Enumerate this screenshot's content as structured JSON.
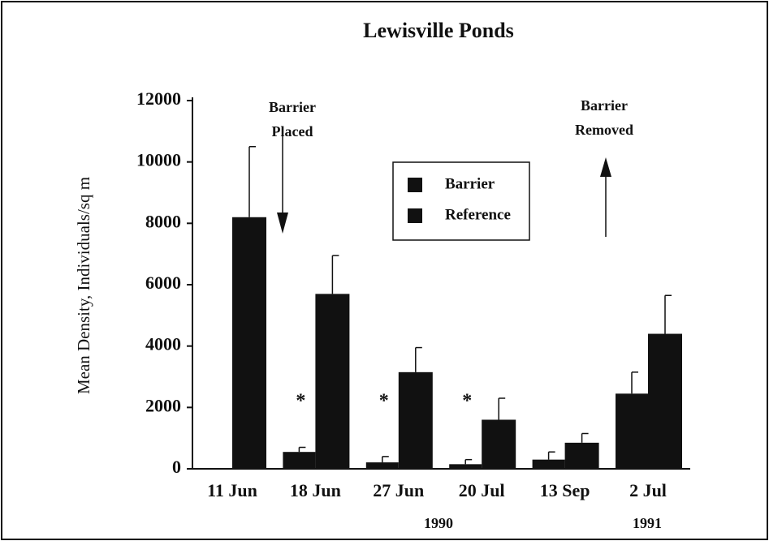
{
  "chart_data": {
    "type": "bar",
    "title": "Lewisville Ponds",
    "ylabel": "Mean Density, Individuals/sq m",
    "categories": [
      "11 Jun",
      "18 Jun",
      "27 Jun",
      "20 Jul",
      "13 Sep",
      "2 Jul"
    ],
    "year_labels": [
      "1990",
      "1991"
    ],
    "series": [
      {
        "name": "Barrier",
        "color": "#111111",
        "values": [
          null,
          550,
          210,
          150,
          300,
          2450
        ],
        "errors": [
          null,
          150,
          190,
          150,
          250,
          700
        ]
      },
      {
        "name": "Reference",
        "color": "#111111",
        "values": [
          8200,
          5700,
          3150,
          1600,
          850,
          4400
        ],
        "errors": [
          2300,
          1250,
          800,
          700,
          300,
          1250
        ]
      }
    ],
    "significance": [
      null,
      "*",
      "*",
      "*",
      null,
      null
    ],
    "annotations": [
      {
        "lines": [
          "Barrier",
          "Placed"
        ]
      },
      {
        "lines": [
          "Barrier",
          "Removed"
        ]
      }
    ],
    "ylim": [
      0,
      12000
    ],
    "yticks": [
      0,
      2000,
      4000,
      6000,
      8000,
      10000,
      12000
    ],
    "grid": false
  }
}
